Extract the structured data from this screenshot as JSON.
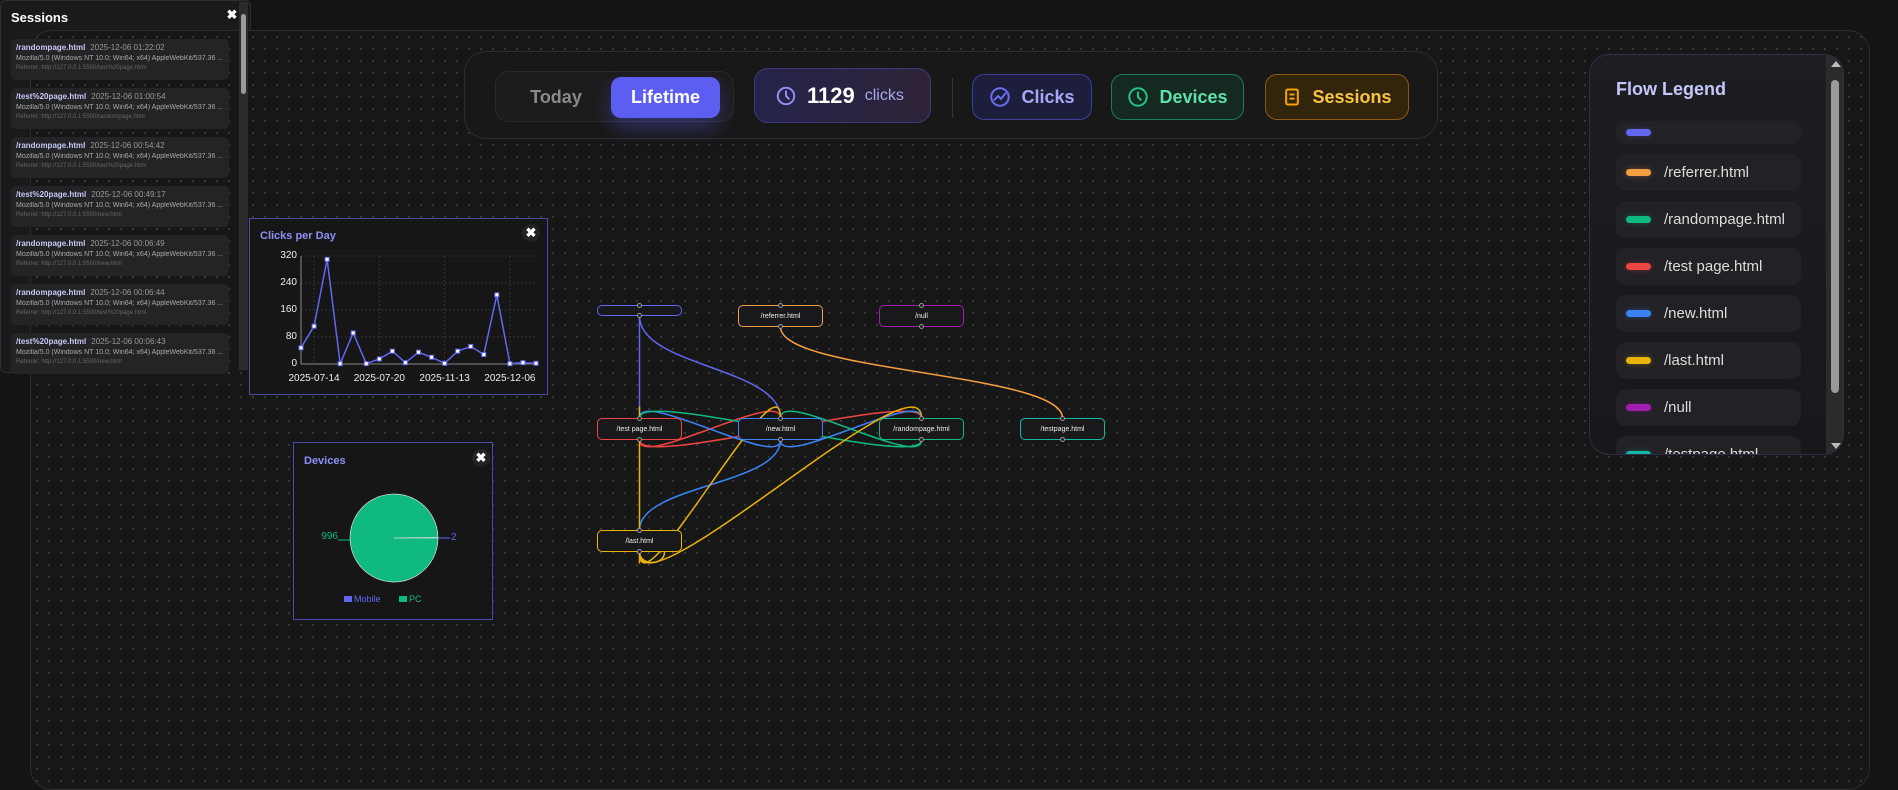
{
  "topbar": {
    "range": {
      "today": "Today",
      "lifetime": "Lifetime",
      "selected": "Lifetime"
    },
    "count": {
      "value": "1129",
      "unit": "clicks",
      "icon": "clock-icon"
    },
    "buttons": [
      {
        "label": "Clicks",
        "icon": "trend-icon"
      },
      {
        "label": "Devices",
        "icon": "clock-icon"
      },
      {
        "label": "Sessions",
        "icon": "list-icon"
      }
    ]
  },
  "clicks_panel": {
    "title": "Clicks per Day",
    "close": "✖"
  },
  "devices_panel": {
    "title": "Devices",
    "close": "✖"
  },
  "chart_data": [
    {
      "type": "line",
      "title": "Clicks per Day",
      "values": [
        48,
        112,
        310,
        1,
        92,
        1,
        15,
        38,
        4,
        35,
        20,
        2,
        38,
        52,
        28,
        205,
        1,
        4,
        2
      ],
      "xticks": [
        {
          "index": 1,
          "label": "2025-07-14"
        },
        {
          "index": 6,
          "label": "2025-07-20"
        },
        {
          "index": 11,
          "label": "2025-11-13"
        },
        {
          "index": 16,
          "label": "2025-12-06"
        }
      ],
      "yticks": [
        "0",
        "80",
        "160",
        "240",
        "320"
      ],
      "ylim": [
        0,
        320
      ],
      "grid": true,
      "color": "#6366f1"
    },
    {
      "type": "pie",
      "title": "Devices",
      "slices": [
        {
          "name": "Mobile",
          "value": 2,
          "label": "2",
          "color": "#6366f1"
        },
        {
          "name": "PC",
          "value": 996,
          "label": "996",
          "color": "#10b981"
        }
      ],
      "legend": "bottom"
    }
  ],
  "flow": {
    "nodes": [
      {
        "id": "blank",
        "label": "",
        "color": "#6366f1"
      },
      {
        "id": "referrer",
        "label": "/referrer.html",
        "color": "#f59e42"
      },
      {
        "id": "null",
        "label": "/null",
        "color": "#a21caf"
      },
      {
        "id": "testpage_sp",
        "label": "/test page.html",
        "color": "#ef4444"
      },
      {
        "id": "new",
        "label": "/new.html",
        "color": "#3b82f6"
      },
      {
        "id": "randompage",
        "label": "/randompage.html",
        "color": "#10b981"
      },
      {
        "id": "testpage",
        "label": "/testpage.html",
        "color": "#14b8a6"
      },
      {
        "id": "last",
        "label": "/last.html",
        "color": "#eab308"
      }
    ],
    "edges": [
      {
        "from": "blank",
        "to": "testpage_sp"
      },
      {
        "from": "blank",
        "to": "new"
      },
      {
        "from": "referrer",
        "to": "testpage"
      },
      {
        "from": "testpage_sp",
        "to": "new"
      },
      {
        "from": "testpage_sp",
        "to": "randompage"
      },
      {
        "from": "new",
        "to": "testpage_sp"
      },
      {
        "from": "new",
        "to": "randompage"
      },
      {
        "from": "new",
        "to": "last"
      },
      {
        "from": "randompage",
        "to": "testpage_sp"
      },
      {
        "from": "randompage",
        "to": "new"
      },
      {
        "from": "last",
        "to": "testpage_sp"
      },
      {
        "from": "last",
        "to": "new"
      },
      {
        "from": "last",
        "to": "randompage"
      },
      {
        "from": "last",
        "to": "last"
      }
    ]
  },
  "sessions": {
    "title": "Sessions",
    "close": "✖",
    "items": [
      {
        "page": "/randompage.html",
        "time": "2025-12-06 01:22:02",
        "ua": "Mozilla/5.0 (Windows NT 10.0; Win64; x64) AppleWebKit/537.36 ...",
        "referrer": "Referrer: http://127.0.0.1:5500/test%20page.html"
      },
      {
        "page": "/test%20page.html",
        "time": "2025-12-06 01:00:54",
        "ua": "Mozilla/5.0 (Windows NT 10.0; Win64; x64) AppleWebKit/537.36 ...",
        "referrer": "Referrer: http://127.0.0.1:5500/randompage.html"
      },
      {
        "page": "/randompage.html",
        "time": "2025-12-06 00:54:42",
        "ua": "Mozilla/5.0 (Windows NT 10.0; Win64; x64) AppleWebKit/537.36 ...",
        "referrer": "Referrer: http://127.0.0.1:5500/test%20page.html"
      },
      {
        "page": "/test%20page.html",
        "time": "2025-12-06 00:49:17",
        "ua": "Mozilla/5.0 (Windows NT 10.0; Win64; x64) AppleWebKit/537.36 ...",
        "referrer": "Referrer: http://127.0.0.1:5500/new.html"
      },
      {
        "page": "/randompage.html",
        "time": "2025-12-06 00:06:49",
        "ua": "Mozilla/5.0 (Windows NT 10.0; Win64; x64) AppleWebKit/537.36 ...",
        "referrer": "Referrer: http://127.0.0.1:5500/new.html"
      },
      {
        "page": "/randompage.html",
        "time": "2025-12-06 00:06:44",
        "ua": "Mozilla/5.0 (Windows NT 10.0; Win64; x64) AppleWebKit/537.36 ...",
        "referrer": "Referrer: http://127.0.0.1:5500/test%20page.html"
      },
      {
        "page": "/test%20page.html",
        "time": "2025-12-06 00:06:43",
        "ua": "Mozilla/5.0 (Windows NT 10.0; Win64; x64) AppleWebKit/537.36 ...",
        "referrer": "Referrer: http://127.0.0.1:5500/new.html"
      }
    ]
  },
  "legend": {
    "title": "Flow Legend",
    "items": [
      {
        "label": "",
        "color": "#6366f1"
      },
      {
        "label": "/referrer.html",
        "color": "#f59e42"
      },
      {
        "label": "/randompage.html",
        "color": "#10b981"
      },
      {
        "label": "/test page.html",
        "color": "#ef4444"
      },
      {
        "label": "/new.html",
        "color": "#3b82f6"
      },
      {
        "label": "/last.html",
        "color": "#eab308"
      },
      {
        "label": "/null",
        "color": "#a21caf"
      },
      {
        "label": "/testpage.html",
        "color": "#14b8a6"
      }
    ]
  }
}
